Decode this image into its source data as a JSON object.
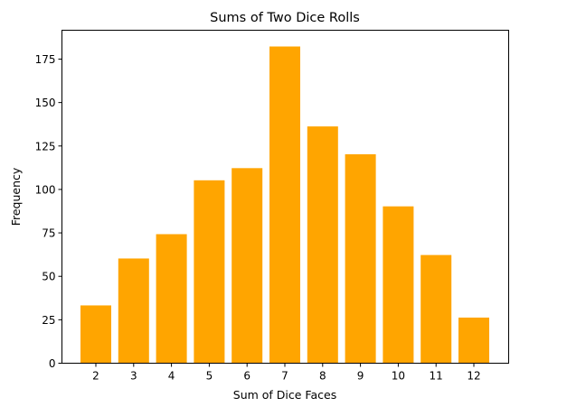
{
  "chart_data": {
    "type": "bar",
    "title": "Sums of Two Dice Rolls",
    "xlabel": "Sum of Dice Faces",
    "ylabel": "Frequency",
    "categories": [
      "2",
      "3",
      "4",
      "5",
      "6",
      "7",
      "8",
      "9",
      "10",
      "11",
      "12"
    ],
    "values": [
      33,
      60,
      74,
      105,
      112,
      182,
      136,
      120,
      90,
      62,
      26
    ],
    "yticks": [
      0,
      25,
      50,
      75,
      100,
      125,
      150,
      175
    ],
    "ylim": [
      0,
      191
    ],
    "grid": false,
    "legend": null,
    "bar_color": "#ffa500"
  }
}
